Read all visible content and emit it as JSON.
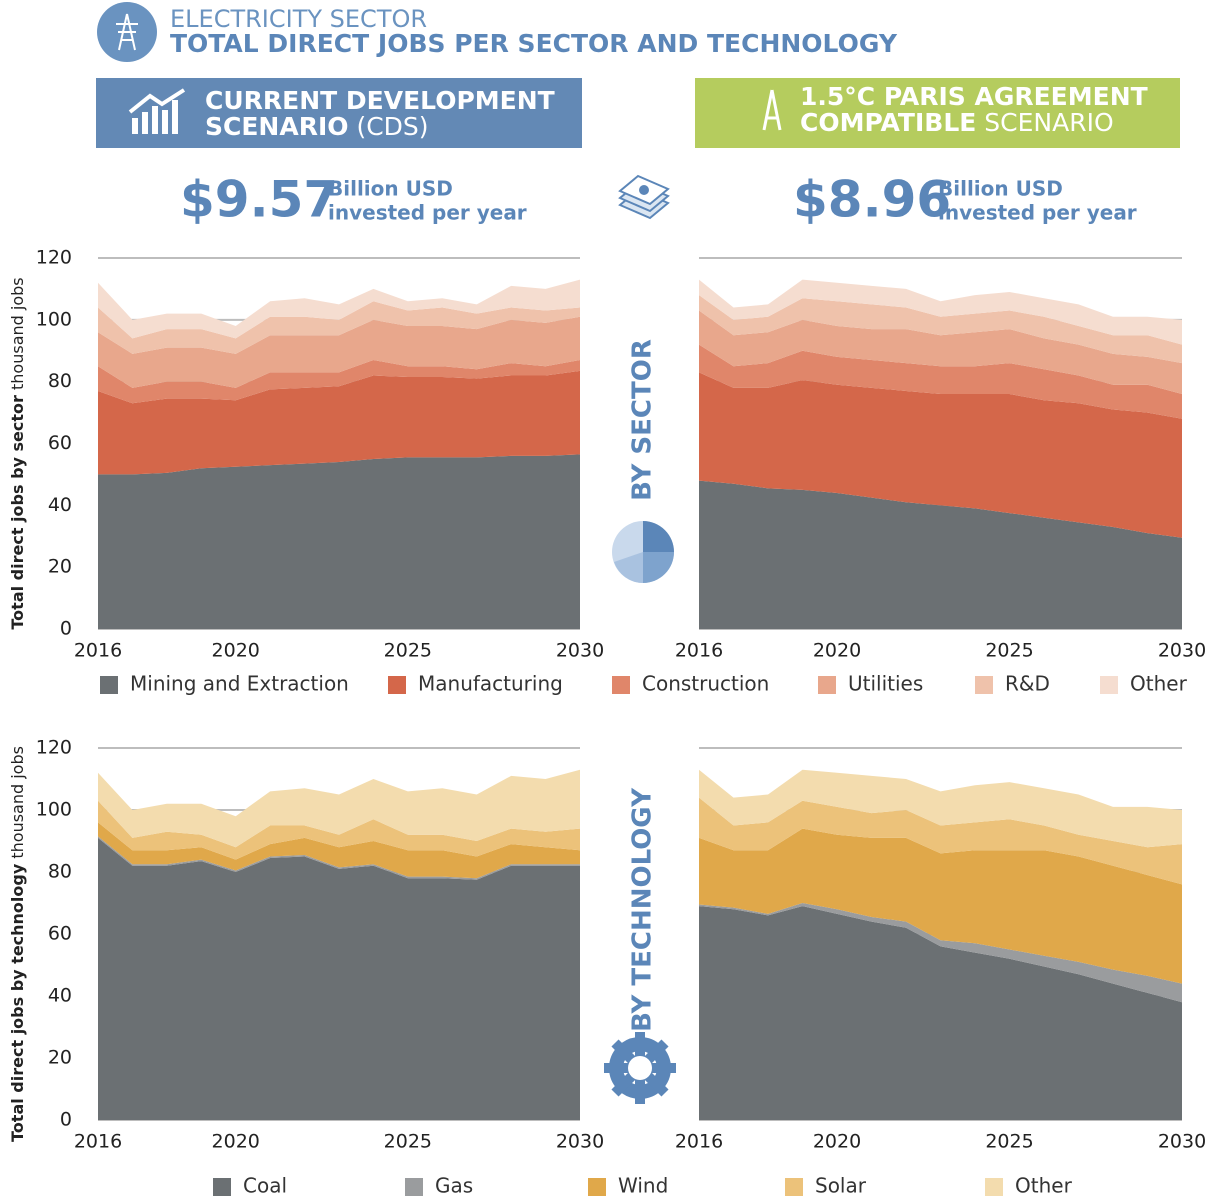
{
  "header": {
    "sector": "ELECTRICITY SECTOR",
    "title": "TOTAL DIRECT JOBS PER SECTOR AND TECHNOLOGY"
  },
  "scenarios": [
    {
      "line1": "CURRENT DEVELOPMENT",
      "line2_bold": "SCENARIO",
      "line2_light": "(CDS)",
      "amount": "$9.57",
      "unit": "Billion USD",
      "note": "invested per year"
    },
    {
      "line1": "1.5°C PARIS AGREEMENT",
      "line2_bold": "COMPATIBLE",
      "line2_light": "SCENARIO",
      "amount": "$8.96",
      "unit": "Billion USD",
      "note": "invested per year"
    }
  ],
  "side_labels": [
    "BY SECTOR",
    "BY TECHNOLOGY"
  ],
  "chart_data": [
    {
      "type": "stacked_area",
      "y_label": "Total direct jobs by sector",
      "y_unit": "thousand jobs",
      "x": [
        2016,
        2017,
        2018,
        2019,
        2020,
        2021,
        2022,
        2023,
        2024,
        2025,
        2026,
        2027,
        2028,
        2029,
        2030
      ],
      "xlim": [
        2016,
        2030
      ],
      "xticks": [
        2016,
        2020,
        2025,
        2030
      ],
      "ylim": [
        0,
        120
      ],
      "yticks": [
        0,
        20,
        40,
        60,
        80,
        100,
        120
      ],
      "grid": true,
      "series": [
        {
          "name": "Mining and Extraction",
          "color": "#6b7073",
          "values": [
            50,
            50,
            50.5,
            52,
            52.5,
            53,
            53.5,
            54,
            55,
            55.5,
            55.5,
            55.5,
            56,
            56,
            56.5
          ]
        },
        {
          "name": "Manufacturing",
          "color": "#d4674a",
          "values": [
            27,
            23,
            24,
            22.5,
            21.5,
            24.5,
            24.5,
            24.5,
            27,
            26,
            26,
            25.5,
            26,
            26,
            27
          ]
        },
        {
          "name": "Construction",
          "color": "#e0866a",
          "values": [
            8,
            5,
            5.5,
            5.5,
            4,
            5.5,
            5,
            4.5,
            5,
            3.5,
            3.5,
            3,
            4,
            3,
            3.5
          ]
        },
        {
          "name": "Utilities",
          "color": "#e8a78c",
          "values": [
            11,
            11,
            11,
            11,
            11,
            12,
            12,
            12,
            13,
            13,
            13,
            13,
            14,
            14,
            14
          ]
        },
        {
          "name": "R&D",
          "color": "#efc2ab",
          "values": [
            8,
            5,
            6,
            6,
            5,
            6,
            6,
            5,
            6,
            5,
            6,
            5,
            4,
            4,
            3
          ]
        },
        {
          "name": "Other",
          "color": "#f5ddd0",
          "values": [
            8,
            6,
            5,
            5,
            4,
            5,
            6,
            5,
            4,
            3,
            3,
            3,
            7,
            7,
            9
          ]
        }
      ]
    },
    {
      "type": "stacked_area",
      "x": [
        2016,
        2017,
        2018,
        2019,
        2020,
        2021,
        2022,
        2023,
        2024,
        2025,
        2026,
        2027,
        2028,
        2029,
        2030
      ],
      "xlim": [
        2016,
        2030
      ],
      "xticks": [
        2016,
        2020,
        2025,
        2030
      ],
      "ylim": [
        0,
        120
      ],
      "yticks": [
        0,
        20,
        40,
        60,
        80,
        100,
        120
      ],
      "grid": true,
      "series": [
        {
          "color": "#6b7073",
          "values": [
            48,
            47,
            45.5,
            45,
            44,
            42.5,
            41,
            40,
            39,
            37.5,
            36,
            34.5,
            33,
            31,
            29.5
          ]
        },
        {
          "color": "#d4674a",
          "values": [
            35,
            31,
            32.5,
            35.5,
            35,
            35.5,
            36,
            36,
            37,
            38.5,
            38,
            38.5,
            38,
            39,
            38.5
          ]
        },
        {
          "color": "#e0866a",
          "values": [
            9,
            7,
            8,
            9.5,
            9,
            9,
            9,
            9,
            9,
            10,
            10,
            9,
            8,
            9,
            8
          ]
        },
        {
          "color": "#e8a78c",
          "values": [
            11,
            10,
            10,
            10,
            10,
            10,
            11,
            10,
            11,
            11,
            10,
            10,
            10,
            9,
            10
          ]
        },
        {
          "color": "#efc2ab",
          "values": [
            5,
            5,
            5,
            7,
            8,
            8,
            7,
            6,
            6,
            6,
            7,
            6,
            6,
            7,
            6
          ]
        },
        {
          "color": "#f5ddd0",
          "values": [
            5,
            4,
            4,
            6,
            6,
            6,
            6,
            5,
            6,
            6,
            6,
            7,
            6,
            6,
            8
          ]
        }
      ]
    },
    {
      "type": "stacked_area",
      "y_label": "Total direct jobs by technology",
      "y_unit": "thousand jobs",
      "x": [
        2016,
        2017,
        2018,
        2019,
        2020,
        2021,
        2022,
        2023,
        2024,
        2025,
        2026,
        2027,
        2028,
        2029,
        2030
      ],
      "xlim": [
        2016,
        2030
      ],
      "xticks": [
        2016,
        2020,
        2025,
        2030
      ],
      "ylim": [
        0,
        120
      ],
      "yticks": [
        0,
        20,
        40,
        60,
        80,
        100,
        120
      ],
      "grid": true,
      "series": [
        {
          "name": "Coal",
          "color": "#6b7073",
          "values": [
            91,
            82,
            82,
            83.5,
            80,
            84.5,
            85,
            81,
            82,
            78,
            78,
            77.5,
            82,
            82,
            82
          ]
        },
        {
          "name": "Gas",
          "color": "#9a9c9e",
          "values": [
            0.5,
            0.5,
            0.5,
            0.5,
            0.5,
            0.5,
            0.5,
            0.5,
            0.5,
            0.5,
            0.5,
            0.5,
            0.5,
            0.5,
            0.5
          ]
        },
        {
          "name": "Wind",
          "color": "#e0a84a",
          "values": [
            4.5,
            4.5,
            4.5,
            4,
            3.5,
            4,
            5.5,
            6.5,
            7.5,
            8.5,
            8.5,
            7,
            6.5,
            5.5,
            4.5
          ]
        },
        {
          "name": "Solar",
          "color": "#ecc27a",
          "values": [
            7,
            4,
            6,
            4,
            4,
            6,
            4,
            4,
            7,
            5,
            5,
            5,
            5,
            5,
            7
          ]
        },
        {
          "name": "Other",
          "color": "#f3dcae",
          "values": [
            9,
            9,
            9,
            10,
            10,
            11,
            12,
            13,
            13,
            14,
            15,
            15,
            17,
            17,
            19
          ]
        }
      ]
    },
    {
      "type": "stacked_area",
      "x": [
        2016,
        2017,
        2018,
        2019,
        2020,
        2021,
        2022,
        2023,
        2024,
        2025,
        2026,
        2027,
        2028,
        2029,
        2030
      ],
      "xlim": [
        2016,
        2030
      ],
      "xticks": [
        2016,
        2020,
        2025,
        2030
      ],
      "ylim": [
        0,
        120
      ],
      "yticks": [
        0,
        20,
        40,
        60,
        80,
        100,
        120
      ],
      "grid": true,
      "series": [
        {
          "color": "#6b7073",
          "values": [
            69,
            68,
            66,
            69,
            66.5,
            64,
            62,
            56,
            54,
            52,
            49.5,
            47,
            44,
            41,
            38
          ]
        },
        {
          "color": "#9a9c9e",
          "values": [
            0.5,
            0.5,
            0.5,
            1,
            1.5,
            1.5,
            2,
            2,
            3,
            3,
            3.5,
            4,
            4.5,
            5.5,
            6
          ]
        },
        {
          "color": "#e0a84a",
          "values": [
            21.5,
            18.5,
            20.5,
            24,
            24,
            25.5,
            27,
            28,
            30,
            32,
            34,
            34,
            33.5,
            32.5,
            32
          ]
        },
        {
          "color": "#ecc27a",
          "values": [
            13,
            8,
            9,
            9,
            9,
            8,
            9,
            9,
            9,
            10,
            8,
            7,
            8,
            9,
            13
          ]
        },
        {
          "color": "#f3dcae",
          "values": [
            9,
            9,
            9,
            10,
            11,
            12,
            10,
            11,
            12,
            12,
            12,
            13,
            11,
            13,
            11
          ]
        }
      ]
    }
  ]
}
